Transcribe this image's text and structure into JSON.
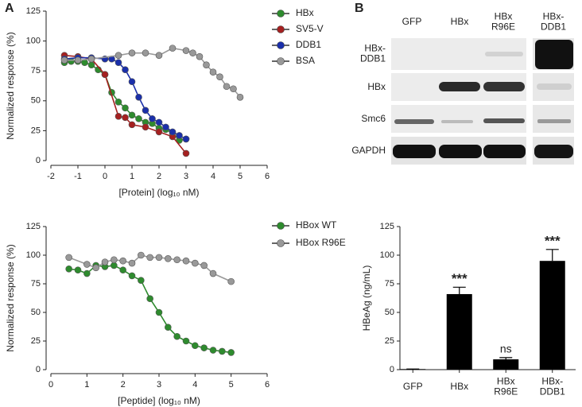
{
  "panel_labels": [
    "A",
    "B"
  ],
  "chart_data": [
    {
      "type": "line",
      "xlabel": "[Protein] (log₁₀ nM)",
      "ylabel": "Normalized response  (%)",
      "xlim": [
        -2,
        6
      ],
      "xticks": [
        -2,
        -1,
        0,
        1,
        2,
        3,
        4,
        5,
        6
      ],
      "ylim": [
        0,
        125
      ],
      "yticks": [
        0,
        25,
        50,
        75,
        100,
        125
      ],
      "series": [
        {
          "name": "HBx",
          "color": "#2e8b2e",
          "x": [
            -1.5,
            -1.25,
            -1,
            -0.75,
            -0.5,
            -0.25,
            0,
            0.25,
            0.5,
            0.75,
            1,
            1.25,
            1.5,
            1.75,
            2,
            2.25,
            2.5,
            2.75,
            3
          ],
          "values": [
            82,
            83,
            83,
            82,
            80,
            76,
            72,
            57,
            49,
            44,
            38,
            35,
            32,
            31,
            27,
            26,
            23,
            17,
            18
          ]
        },
        {
          "name": "SV5-V",
          "color": "#a52020",
          "x": [
            -1.5,
            -1,
            -0.5,
            0,
            0.5,
            0.75,
            1,
            1.5,
            2,
            2.5,
            3
          ],
          "values": [
            88,
            87,
            85,
            72,
            37,
            36,
            30,
            28,
            24,
            20,
            6
          ]
        },
        {
          "name": "DDB1",
          "color": "#1a2faa",
          "x": [
            -1.5,
            -1,
            -0.5,
            0,
            0.25,
            0.5,
            0.75,
            1,
            1.25,
            1.5,
            1.75,
            2,
            2.25,
            2.5,
            2.75,
            3
          ],
          "values": [
            85,
            86,
            86,
            85,
            85,
            82,
            76,
            66,
            53,
            42,
            35,
            32,
            28,
            24,
            21,
            18
          ]
        },
        {
          "name": "BSA",
          "color": "#999999",
          "x": [
            -1.5,
            -1,
            -0.5,
            0.5,
            1,
            1.5,
            2,
            2.5,
            3,
            3.25,
            3.5,
            3.75,
            4,
            4.25,
            4.5,
            4.75,
            5
          ],
          "values": [
            84,
            84,
            85,
            88,
            90,
            90,
            88,
            94,
            92,
            90,
            87,
            80,
            74,
            70,
            62,
            60,
            53
          ]
        }
      ]
    },
    {
      "type": "line",
      "xlabel": "[Peptide] (log₁₀ nM)",
      "ylabel": "Normalized response  (%)",
      "xlim": [
        0,
        6
      ],
      "xticks": [
        0,
        1,
        2,
        3,
        4,
        5,
        6
      ],
      "ylim": [
        0,
        125
      ],
      "yticks": [
        0,
        25,
        50,
        75,
        100,
        125
      ],
      "series": [
        {
          "name": "HBox WT",
          "color": "#2e8b2e",
          "x": [
            0.5,
            0.75,
            1,
            1.25,
            1.5,
            1.75,
            2,
            2.25,
            2.5,
            2.75,
            3,
            3.25,
            3.5,
            3.75,
            4,
            4.25,
            4.5,
            4.75,
            5
          ],
          "values": [
            88,
            87,
            84,
            91,
            90,
            91,
            87,
            82,
            78,
            62,
            50,
            37,
            29,
            25,
            21,
            19,
            17,
            16,
            15
          ]
        },
        {
          "name": "HBox R96E",
          "color": "#999999",
          "x": [
            0.5,
            1,
            1.25,
            1.5,
            1.75,
            2,
            2.25,
            2.5,
            2.75,
            3,
            3.25,
            3.5,
            3.75,
            4,
            4.25,
            4.5,
            5
          ],
          "values": [
            98,
            92,
            89,
            94,
            96,
            95,
            93,
            100,
            98,
            98,
            97,
            96,
            95,
            93,
            91,
            84,
            77
          ]
        }
      ]
    },
    {
      "type": "bar",
      "ylabel": "HBeAg (ng/mL)",
      "color": "#000000",
      "categories": [
        "GFP",
        "HBx",
        "HBx\nR96E",
        "HBx-\nDDB1"
      ],
      "values": [
        0.5,
        66,
        9,
        95
      ],
      "errors": [
        0,
        6,
        1.5,
        10
      ],
      "annotations": [
        null,
        "***",
        "ns",
        "***"
      ],
      "ylim": [
        0,
        125
      ],
      "yticks": [
        0,
        25,
        50,
        75,
        100,
        125
      ]
    }
  ],
  "blot": {
    "columns": [
      "GFP",
      "HBx",
      "HBx\nR96E",
      "HBx-\nDDB1"
    ],
    "rows": [
      "HBx-\nDDB1",
      "HBx",
      "Smc6",
      "GAPDH"
    ]
  }
}
